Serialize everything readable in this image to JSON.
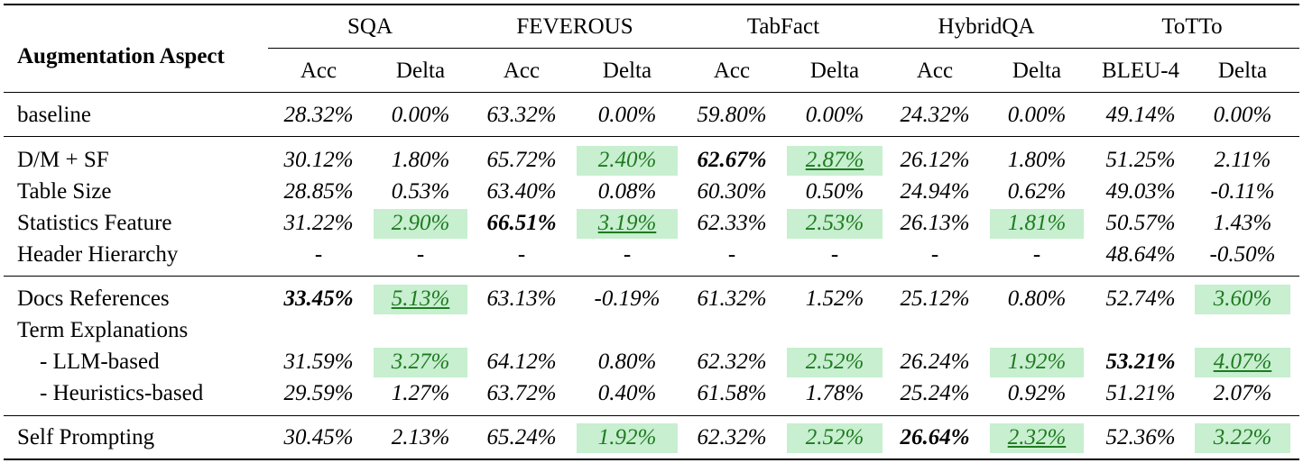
{
  "corner_header": "Augmentation Aspect",
  "datasets": [
    "SQA",
    "FEVEROUS",
    "TabFact",
    "HybridQA",
    "ToTTo"
  ],
  "subheaders": [
    "Acc",
    "Delta",
    "Acc",
    "Delta",
    "Acc",
    "Delta",
    "Acc",
    "Delta",
    "BLEU-4",
    "Delta"
  ],
  "highlight_color": "#c7efd0",
  "highlight_text_color": "#1f7a1f",
  "rows": [
    {
      "label": "baseline",
      "values": [
        "28.32%",
        "0.00%",
        "63.32%",
        "0.00%",
        "59.80%",
        "0.00%",
        "24.32%",
        "0.00%",
        "49.14%",
        "0.00%"
      ]
    },
    {
      "label": "D/M + SF",
      "values": [
        "30.12%",
        "1.80%",
        "65.72%",
        "2.40%",
        "62.67%",
        "2.87%",
        "26.12%",
        "1.80%",
        "51.25%",
        "2.11%"
      ]
    },
    {
      "label": "Table Size",
      "values": [
        "28.85%",
        "0.53%",
        "63.40%",
        "0.08%",
        "60.30%",
        "0.50%",
        "24.94%",
        "0.62%",
        "49.03%",
        "-0.11%"
      ]
    },
    {
      "label": "Statistics Feature",
      "values": [
        "31.22%",
        "2.90%",
        "66.51%",
        "3.19%",
        "62.33%",
        "2.53%",
        "26.13%",
        "1.81%",
        "50.57%",
        "1.43%"
      ]
    },
    {
      "label": "Header Hierarchy",
      "values": [
        "-",
        "-",
        "-",
        "-",
        "-",
        "-",
        "-",
        "-",
        "48.64%",
        "-0.50%"
      ]
    },
    {
      "label": "Docs References",
      "values": [
        "33.45%",
        "5.13%",
        "63.13%",
        "-0.19%",
        "61.32%",
        "1.52%",
        "25.12%",
        "0.80%",
        "52.74%",
        "3.60%"
      ]
    },
    {
      "label": "Term Explanations",
      "values": [
        "",
        "",
        "",
        "",
        "",
        "",
        "",
        "",
        "",
        ""
      ]
    },
    {
      "label": "- LLM-based",
      "values": [
        "31.59%",
        "3.27%",
        "64.12%",
        "0.80%",
        "62.32%",
        "2.52%",
        "26.24%",
        "1.92%",
        "53.21%",
        "4.07%"
      ]
    },
    {
      "label": "- Heuristics-based",
      "values": [
        "29.59%",
        "1.27%",
        "63.72%",
        "0.40%",
        "61.58%",
        "1.78%",
        "25.24%",
        "0.92%",
        "51.21%",
        "2.07%"
      ]
    },
    {
      "label": "Self Prompting",
      "values": [
        "30.45%",
        "2.13%",
        "65.24%",
        "1.92%",
        "62.32%",
        "2.52%",
        "26.64%",
        "2.32%",
        "52.36%",
        "3.22%"
      ]
    }
  ],
  "highlighted_cells": [
    [
      1,
      3
    ],
    [
      1,
      5
    ],
    [
      3,
      1
    ],
    [
      3,
      3
    ],
    [
      3,
      5
    ],
    [
      3,
      7
    ],
    [
      5,
      1
    ],
    [
      5,
      9
    ],
    [
      7,
      1
    ],
    [
      7,
      5
    ],
    [
      7,
      7
    ],
    [
      7,
      9
    ],
    [
      9,
      3
    ],
    [
      9,
      5
    ],
    [
      9,
      7
    ],
    [
      9,
      9
    ]
  ],
  "bold_cells": [
    [
      1,
      4
    ],
    [
      3,
      2
    ],
    [
      5,
      0
    ],
    [
      7,
      8
    ],
    [
      9,
      6
    ]
  ],
  "underlined_cells": [
    [
      1,
      5
    ],
    [
      3,
      3
    ],
    [
      5,
      1
    ],
    [
      7,
      9
    ],
    [
      9,
      7
    ]
  ]
}
